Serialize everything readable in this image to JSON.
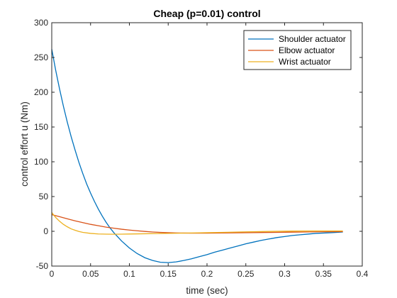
{
  "chart_data": {
    "type": "line",
    "title": "Cheap (p=0.01) control",
    "xlabel": "time (sec)",
    "ylabel": "control effort u (Nm)",
    "xlim": [
      0,
      0.4
    ],
    "ylim": [
      -50,
      300
    ],
    "xticks": [
      0,
      0.05,
      0.1,
      0.15,
      0.2,
      0.25,
      0.3,
      0.35,
      0.4
    ],
    "xtick_labels": [
      "0",
      "0.05",
      "0.1",
      "0.15",
      "0.2",
      "0.25",
      "0.3",
      "0.35",
      "0.4"
    ],
    "yticks": [
      -50,
      0,
      50,
      100,
      150,
      200,
      250,
      300
    ],
    "ytick_labels": [
      "-50",
      "0",
      "50",
      "100",
      "150",
      "200",
      "250",
      "300"
    ],
    "grid": false,
    "legend_position": "top-right",
    "series": [
      {
        "name": "Shoulder actuator",
        "color": "#0072BD",
        "x": [
          0,
          0.005,
          0.01,
          0.015,
          0.02,
          0.025,
          0.03,
          0.035,
          0.04,
          0.045,
          0.05,
          0.055,
          0.06,
          0.065,
          0.07,
          0.075,
          0.08,
          0.09,
          0.1,
          0.11,
          0.12,
          0.13,
          0.14,
          0.15,
          0.16,
          0.17,
          0.18,
          0.19,
          0.2,
          0.21,
          0.22,
          0.23,
          0.24,
          0.25,
          0.26,
          0.27,
          0.28,
          0.29,
          0.3,
          0.31,
          0.32,
          0.33,
          0.34,
          0.35,
          0.36,
          0.375
        ],
        "y": [
          262,
          232,
          205,
          180,
          157,
          136,
          117,
          99,
          83,
          68,
          55,
          43,
          32,
          22,
          13,
          5,
          -2,
          -14,
          -24,
          -32,
          -38,
          -42,
          -44.5,
          -45,
          -44,
          -42,
          -39.5,
          -36.5,
          -33.5,
          -30,
          -27,
          -24,
          -21,
          -18,
          -15.5,
          -13,
          -11,
          -9,
          -7.5,
          -6,
          -5,
          -4,
          -3,
          -2.5,
          -2,
          -1
        ]
      },
      {
        "name": "Elbow actuator",
        "color": "#D95319",
        "x": [
          0,
          0.01,
          0.02,
          0.03,
          0.04,
          0.05,
          0.06,
          0.07,
          0.08,
          0.09,
          0.1,
          0.11,
          0.12,
          0.13,
          0.14,
          0.15,
          0.16,
          0.17,
          0.18,
          0.2,
          0.22,
          0.25,
          0.28,
          0.31,
          0.34,
          0.375
        ],
        "y": [
          24,
          21,
          18,
          15,
          12.5,
          10,
          8,
          6,
          4.5,
          3,
          1.8,
          0.8,
          -0.2,
          -1,
          -1.6,
          -2,
          -2.3,
          -2.5,
          -2.6,
          -2.6,
          -2.4,
          -2,
          -1.6,
          -1.2,
          -0.8,
          -0.5
        ]
      },
      {
        "name": "Wrist actuator",
        "color": "#EDB120",
        "x": [
          0,
          0.005,
          0.01,
          0.015,
          0.02,
          0.025,
          0.03,
          0.035,
          0.04,
          0.05,
          0.06,
          0.07,
          0.08,
          0.09,
          0.1,
          0.12,
          0.14,
          0.16,
          0.18,
          0.2,
          0.22,
          0.25,
          0.28,
          0.31,
          0.34,
          0.375
        ],
        "y": [
          27,
          20,
          14.5,
          10,
          6.5,
          3.5,
          1.5,
          -0.3,
          -1.5,
          -3,
          -3.8,
          -4.1,
          -4.2,
          -4.1,
          -3.9,
          -3.5,
          -3.2,
          -2.8,
          -2.4,
          -2,
          -1.5,
          -0.8,
          -0.2,
          0.3,
          0.5,
          0.5
        ]
      }
    ]
  }
}
